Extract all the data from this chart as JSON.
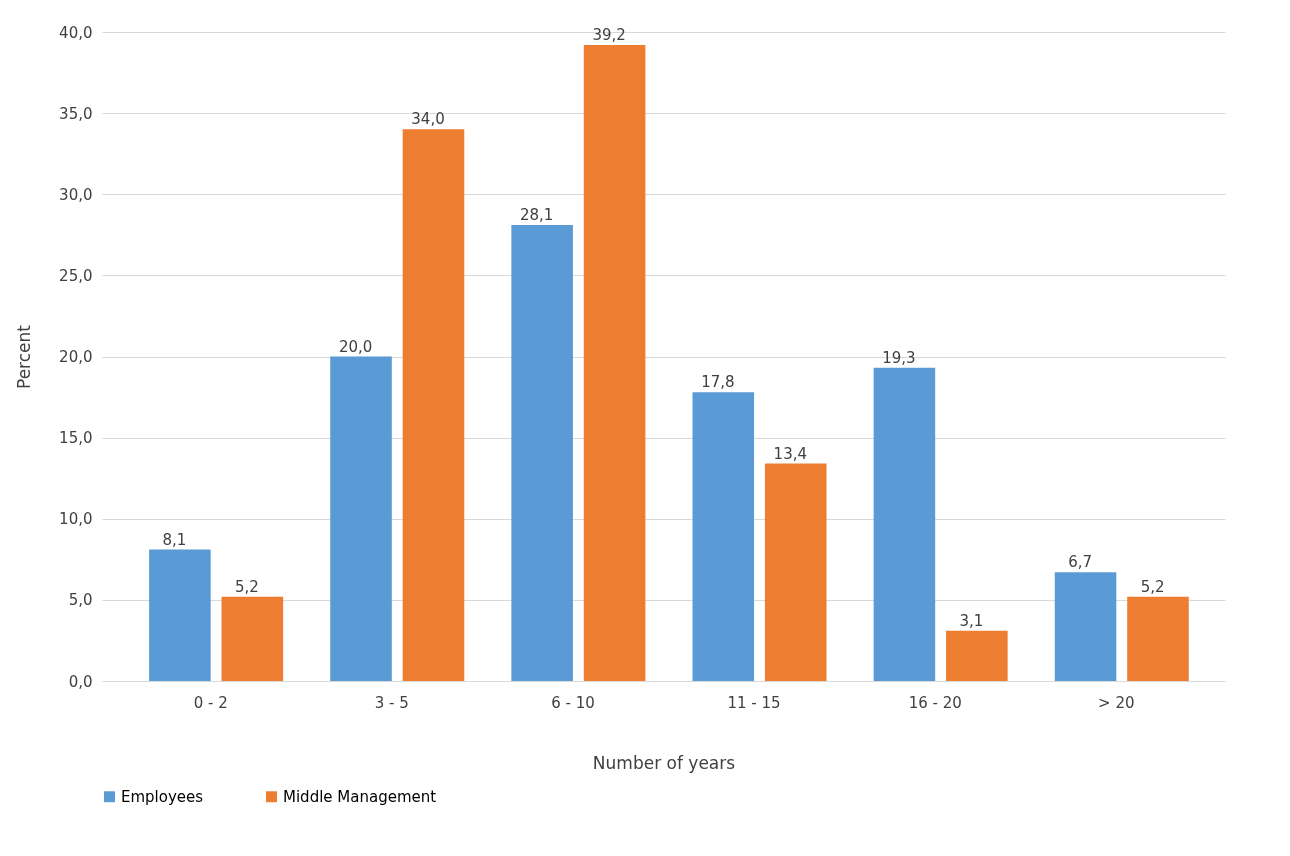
{
  "chart_data": {
    "type": "bar",
    "xlabel": "Number of years",
    "ylabel": "Percent",
    "categories": [
      "0 - 2",
      "3 - 5",
      "6 - 10",
      "11 - 15",
      "16 - 20",
      "> 20"
    ],
    "series": [
      {
        "name": "Employees",
        "color": "#5b9bd5",
        "values": [
          8.1,
          20.0,
          28.1,
          17.8,
          19.3,
          6.7
        ],
        "value_labels": [
          "8,1",
          "20,0",
          "28,1",
          "17,8",
          "19,3",
          "6,7"
        ]
      },
      {
        "name": "Middle Management",
        "color": "#ed7d31",
        "values": [
          5.2,
          34.0,
          39.2,
          13.4,
          3.1,
          5.2
        ],
        "value_labels": [
          "5,2",
          "34,0",
          "39,2",
          "13,4",
          "3,1",
          "5,2"
        ]
      }
    ],
    "ylim": [
      0,
      40
    ],
    "yticks": [
      {
        "value": 0,
        "label": "0,0"
      },
      {
        "value": 5,
        "label": "5,0"
      },
      {
        "value": 10,
        "label": "10,0"
      },
      {
        "value": 15,
        "label": "15,0"
      },
      {
        "value": 20,
        "label": "20,0"
      },
      {
        "value": 25,
        "label": "25,0"
      },
      {
        "value": 30,
        "label": "30,0"
      },
      {
        "value": 35,
        "label": "35,0"
      },
      {
        "value": 40,
        "label": "40,0"
      }
    ],
    "grid": "y",
    "legend": "bottom left"
  }
}
